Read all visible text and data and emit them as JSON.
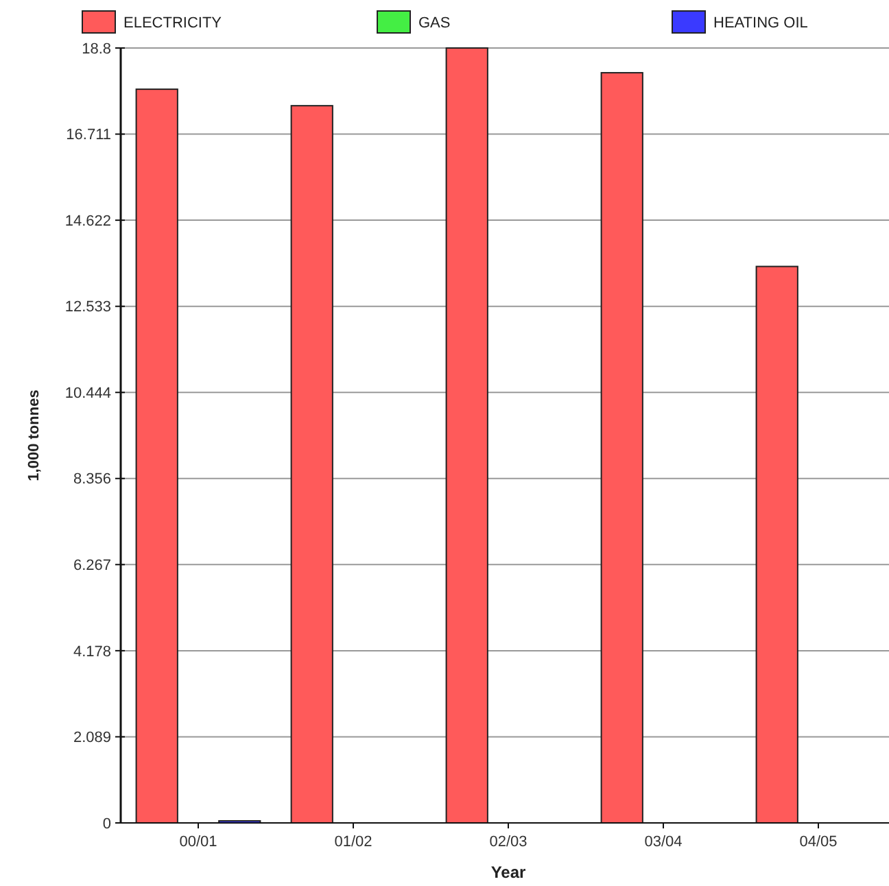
{
  "chart_data": {
    "type": "bar",
    "xlabel": "Year",
    "ylabel": "1,000 tonnes",
    "categories": [
      "00/01",
      "01/02",
      "02/03",
      "03/04",
      "04/05"
    ],
    "series": [
      {
        "name": "ELECTRICITY",
        "color": "#ff5a5a",
        "values": [
          17.8,
          17.4,
          18.8,
          18.2,
          13.5
        ]
      },
      {
        "name": "GAS",
        "color": "#44ee44",
        "values": [
          0,
          0,
          0,
          0,
          0
        ]
      },
      {
        "name": "HEATING OIL",
        "color": "#3a3aff",
        "values": [
          0.05,
          0,
          0,
          0,
          0
        ]
      }
    ],
    "ylim": [
      0,
      18.8
    ],
    "yticks": [
      0,
      2.089,
      4.178,
      6.267,
      8.356,
      10.444,
      12.533,
      14.622,
      16.711,
      18.8
    ],
    "grid": "y",
    "legend": "top"
  }
}
